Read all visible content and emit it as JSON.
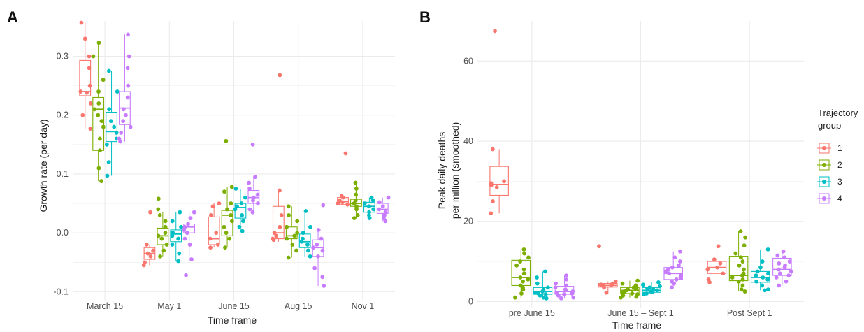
{
  "colors": {
    "g1": "#F8766D",
    "g2": "#7CAE00",
    "g3": "#00BFC4",
    "g4": "#C77CFF",
    "grid": "#ebebeb"
  },
  "chart_data": [
    {
      "panel": "A",
      "type": "box",
      "xlabel": "Time frame",
      "ylabel": "Growth rate (per day)",
      "ylim": [
        -0.115,
        0.36
      ],
      "yticks": [
        -0.1,
        0.0,
        0.1,
        0.2,
        0.3
      ],
      "ytick_labels": [
        "-0.1",
        "0.0",
        "0.1",
        "0.2",
        "0.3"
      ],
      "categories": [
        "March 15",
        "May 1",
        "June 15",
        "Aug 15",
        "Nov 1"
      ],
      "series": [
        {
          "name": "1",
          "boxes": [
            {
              "q1": 0.233,
              "median": 0.24,
              "q3": 0.293,
              "lo": 0.177,
              "hi": 0.357,
              "points": [
                0.357,
                0.33,
                0.3,
                0.28,
                0.25,
                0.24,
                0.238,
                0.22,
                0.2,
                0.177
              ]
            },
            {
              "q1": -0.045,
              "median": -0.035,
              "q3": -0.025,
              "lo": -0.055,
              "hi": -0.02,
              "points": [
                0.035,
                -0.02,
                -0.03,
                -0.035,
                -0.04,
                -0.05,
                -0.055
              ]
            },
            {
              "q1": -0.02,
              "median": -0.01,
              "q3": 0.027,
              "lo": -0.025,
              "hi": 0.05,
              "points": [
                0.05,
                0.045,
                0.03,
                0.0,
                -0.01,
                -0.02,
                -0.025
              ]
            },
            {
              "q1": -0.01,
              "median": 0.0,
              "q3": 0.045,
              "lo": -0.015,
              "hi": 0.072,
              "points": [
                0.268,
                0.072,
                0.03,
                0.01,
                0.0,
                -0.005,
                -0.01,
                -0.012
              ]
            },
            {
              "q1": 0.048,
              "median": 0.053,
              "q3": 0.06,
              "lo": 0.045,
              "hi": 0.063,
              "points": [
                0.135,
                0.063,
                0.06,
                0.055,
                0.052,
                0.05,
                0.048
              ]
            }
          ]
        },
        {
          "name": "2",
          "boxes": [
            {
              "q1": 0.14,
              "median": 0.21,
              "q3": 0.23,
              "lo": 0.088,
              "hi": 0.323,
              "points": [
                0.323,
                0.3,
                0.26,
                0.24,
                0.22,
                0.21,
                0.2,
                0.19,
                0.18,
                0.16,
                0.14,
                0.11,
                0.088
              ]
            },
            {
              "q1": -0.02,
              "median": -0.005,
              "q3": 0.008,
              "lo": -0.04,
              "hi": 0.035,
              "points": [
                0.058,
                0.04,
                0.03,
                0.02,
                0.01,
                0.0,
                -0.005,
                -0.01,
                -0.02,
                -0.03,
                -0.04
              ]
            },
            {
              "q1": -0.005,
              "median": 0.03,
              "q3": 0.038,
              "lo": -0.025,
              "hi": 0.078,
              "points": [
                0.156,
                0.078,
                0.07,
                0.05,
                0.04,
                0.03,
                0.02,
                0.01,
                0.0,
                -0.01,
                -0.025
              ]
            },
            {
              "q1": -0.01,
              "median": -0.005,
              "q3": 0.01,
              "lo": -0.042,
              "hi": 0.045,
              "points": [
                0.045,
                0.03,
                0.02,
                0.01,
                0.0,
                -0.005,
                -0.01,
                -0.02,
                -0.03,
                -0.042
              ]
            },
            {
              "q1": 0.045,
              "median": 0.05,
              "q3": 0.057,
              "lo": 0.025,
              "hi": 0.085,
              "points": [
                0.085,
                0.075,
                0.065,
                0.055,
                0.05,
                0.045,
                0.04,
                0.03,
                0.025
              ]
            }
          ]
        },
        {
          "name": "3",
          "boxes": [
            {
              "q1": 0.155,
              "median": 0.172,
              "q3": 0.205,
              "lo": 0.097,
              "hi": 0.275,
              "points": [
                0.275,
                0.24,
                0.21,
                0.19,
                0.18,
                0.17,
                0.16,
                0.15,
                0.12,
                0.097
              ]
            },
            {
              "q1": -0.015,
              "median": -0.002,
              "q3": 0.005,
              "lo": -0.048,
              "hi": 0.035,
              "points": [
                0.035,
                0.02,
                0.01,
                0.0,
                -0.005,
                -0.01,
                -0.02,
                -0.035,
                -0.048
              ]
            },
            {
              "q1": 0.025,
              "median": 0.043,
              "q3": 0.05,
              "lo": 0.003,
              "hi": 0.075,
              "points": [
                0.075,
                0.06,
                0.05,
                0.045,
                0.04,
                0.03,
                0.02,
                0.01,
                0.003
              ]
            },
            {
              "q1": -0.025,
              "median": -0.015,
              "q3": -0.002,
              "lo": -0.04,
              "hi": 0.037,
              "points": [
                0.037,
                0.01,
                0.0,
                -0.01,
                -0.015,
                -0.02,
                -0.03,
                -0.04
              ]
            },
            {
              "q1": 0.035,
              "median": 0.045,
              "q3": 0.052,
              "lo": 0.025,
              "hi": 0.06,
              "points": [
                0.06,
                0.055,
                0.05,
                0.045,
                0.04,
                0.035,
                0.03,
                0.025
              ]
            }
          ]
        },
        {
          "name": "4",
          "boxes": [
            {
              "q1": 0.184,
              "median": 0.212,
              "q3": 0.24,
              "lo": 0.155,
              "hi": 0.337,
              "points": [
                0.337,
                0.3,
                0.28,
                0.25,
                0.23,
                0.21,
                0.2,
                0.19,
                0.18,
                0.17,
                0.16,
                0.155
              ]
            },
            {
              "q1": 0.0,
              "median": 0.01,
              "q3": 0.015,
              "lo": -0.045,
              "hi": 0.035,
              "points": [
                0.035,
                0.025,
                0.015,
                0.01,
                0.005,
                0.0,
                -0.01,
                -0.02,
                -0.045,
                -0.072
              ]
            },
            {
              "q1": 0.05,
              "median": 0.06,
              "q3": 0.072,
              "lo": 0.035,
              "hi": 0.095,
              "points": [
                0.15,
                0.095,
                0.085,
                0.075,
                0.065,
                0.06,
                0.055,
                0.05,
                0.04,
                0.035
              ]
            },
            {
              "q1": -0.04,
              "median": -0.025,
              "q3": -0.012,
              "lo": -0.09,
              "hi": 0.005,
              "points": [
                0.047,
                0.005,
                -0.01,
                -0.02,
                -0.025,
                -0.03,
                -0.04,
                -0.06,
                -0.075,
                -0.09
              ]
            },
            {
              "q1": 0.033,
              "median": 0.04,
              "q3": 0.05,
              "lo": 0.02,
              "hi": 0.06,
              "points": [
                0.06,
                0.052,
                0.045,
                0.04,
                0.035,
                0.03,
                0.025,
                0.02
              ]
            }
          ]
        }
      ]
    },
    {
      "panel": "B",
      "type": "box",
      "xlabel": "Time frame",
      "ylabel": "Peak daily deaths per million (smoothed)",
      "ylabel_lines": [
        "Peak daily deaths",
        "per million (smoothed)"
      ],
      "ylim": [
        -1.5,
        70
      ],
      "yticks": [
        0,
        20,
        40,
        60
      ],
      "ytick_labels": [
        "0",
        "20",
        "40",
        "60"
      ],
      "categories": [
        "pre June 15",
        "June 15 – Sept 1",
        "Post Sept 1"
      ],
      "legend": {
        "title_lines": [
          "Trajectory",
          "group"
        ],
        "entries": [
          "1",
          "2",
          "3",
          "4"
        ],
        "position": "right"
      },
      "series": [
        {
          "name": "1",
          "boxes": [
            {
              "q1": 26.5,
              "median": 29.2,
              "q3": 33.7,
              "lo": 22.0,
              "hi": 38.0,
              "points": [
                67.5,
                38.0,
                30.0,
                29.5,
                29.0,
                28.5,
                25.0,
                22.0
              ]
            },
            {
              "q1": 3.6,
              "median": 4.0,
              "q3": 4.5,
              "lo": 2.2,
              "hi": 5.0,
              "points": [
                13.8,
                5.0,
                4.5,
                4.2,
                4.0,
                3.8,
                3.5,
                2.2
              ]
            },
            {
              "q1": 7.0,
              "median": 8.5,
              "q3": 10.0,
              "lo": 4.8,
              "hi": 13.8,
              "points": [
                13.8,
                10.5,
                9.5,
                8.5,
                8.0,
                7.0,
                5.5,
                4.8
              ]
            }
          ]
        },
        {
          "name": "2",
          "boxes": [
            {
              "q1": 4.0,
              "median": 6.0,
              "q3": 10.3,
              "lo": 1.0,
              "hi": 13.0,
              "points": [
                13.0,
                12.0,
                11.0,
                10.0,
                9.0,
                8.0,
                7.0,
                6.0,
                5.5,
                5.0,
                4.0,
                3.5,
                3.0,
                2.0,
                1.0
              ]
            },
            {
              "q1": 2.0,
              "median": 2.8,
              "q3": 3.5,
              "lo": 1.0,
              "hi": 5.2,
              "points": [
                5.2,
                4.5,
                4.0,
                3.5,
                3.2,
                3.0,
                2.8,
                2.5,
                2.2,
                2.0,
                1.8,
                1.5,
                1.2,
                1.0
              ]
            },
            {
              "q1": 5.2,
              "median": 6.5,
              "q3": 11.3,
              "lo": 2.5,
              "hi": 17.5,
              "points": [
                17.5,
                16.0,
                14.0,
                12.0,
                11.0,
                10.0,
                9.0,
                8.0,
                7.0,
                6.5,
                6.0,
                5.5,
                5.0,
                4.0,
                3.0,
                2.5
              ]
            }
          ]
        },
        {
          "name": "3",
          "boxes": [
            {
              "q1": 1.8,
              "median": 2.5,
              "q3": 3.5,
              "lo": 0.8,
              "hi": 7.5,
              "points": [
                7.5,
                6.0,
                4.5,
                3.5,
                3.0,
                2.5,
                2.2,
                2.0,
                1.8,
                1.5,
                1.0,
                0.8
              ]
            },
            {
              "q1": 2.3,
              "median": 2.8,
              "q3": 3.5,
              "lo": 1.8,
              "hi": 4.8,
              "points": [
                4.8,
                4.2,
                3.8,
                3.5,
                3.2,
                3.0,
                2.8,
                2.5,
                2.3,
                2.0,
                1.8
              ]
            },
            {
              "q1": 4.8,
              "median": 6.0,
              "q3": 7.5,
              "lo": 2.8,
              "hi": 13.0,
              "points": [
                13.0,
                10.0,
                8.5,
                7.5,
                7.0,
                6.5,
                6.0,
                5.5,
                5.0,
                4.0,
                3.0,
                2.8
              ]
            }
          ]
        },
        {
          "name": "4",
          "boxes": [
            {
              "q1": 1.8,
              "median": 2.5,
              "q3": 3.8,
              "lo": 0.8,
              "hi": 6.5,
              "points": [
                6.5,
                5.5,
                4.5,
                4.0,
                3.5,
                3.0,
                2.8,
                2.5,
                2.2,
                2.0,
                1.8,
                1.5,
                1.0,
                0.8
              ]
            },
            {
              "q1": 5.5,
              "median": 7.0,
              "q3": 8.5,
              "lo": 3.5,
              "hi": 12.5,
              "points": [
                12.5,
                11.0,
                10.0,
                9.0,
                8.5,
                8.0,
                7.5,
                7.0,
                6.5,
                6.0,
                5.5,
                5.0,
                4.5,
                3.5
              ]
            },
            {
              "q1": 6.5,
              "median": 8.0,
              "q3": 10.8,
              "lo": 4.0,
              "hi": 12.5,
              "points": [
                12.5,
                11.5,
                11.0,
                10.0,
                9.5,
                9.0,
                8.5,
                8.0,
                7.5,
                7.0,
                6.5,
                6.0,
                5.0,
                4.0
              ]
            }
          ]
        }
      ]
    }
  ]
}
